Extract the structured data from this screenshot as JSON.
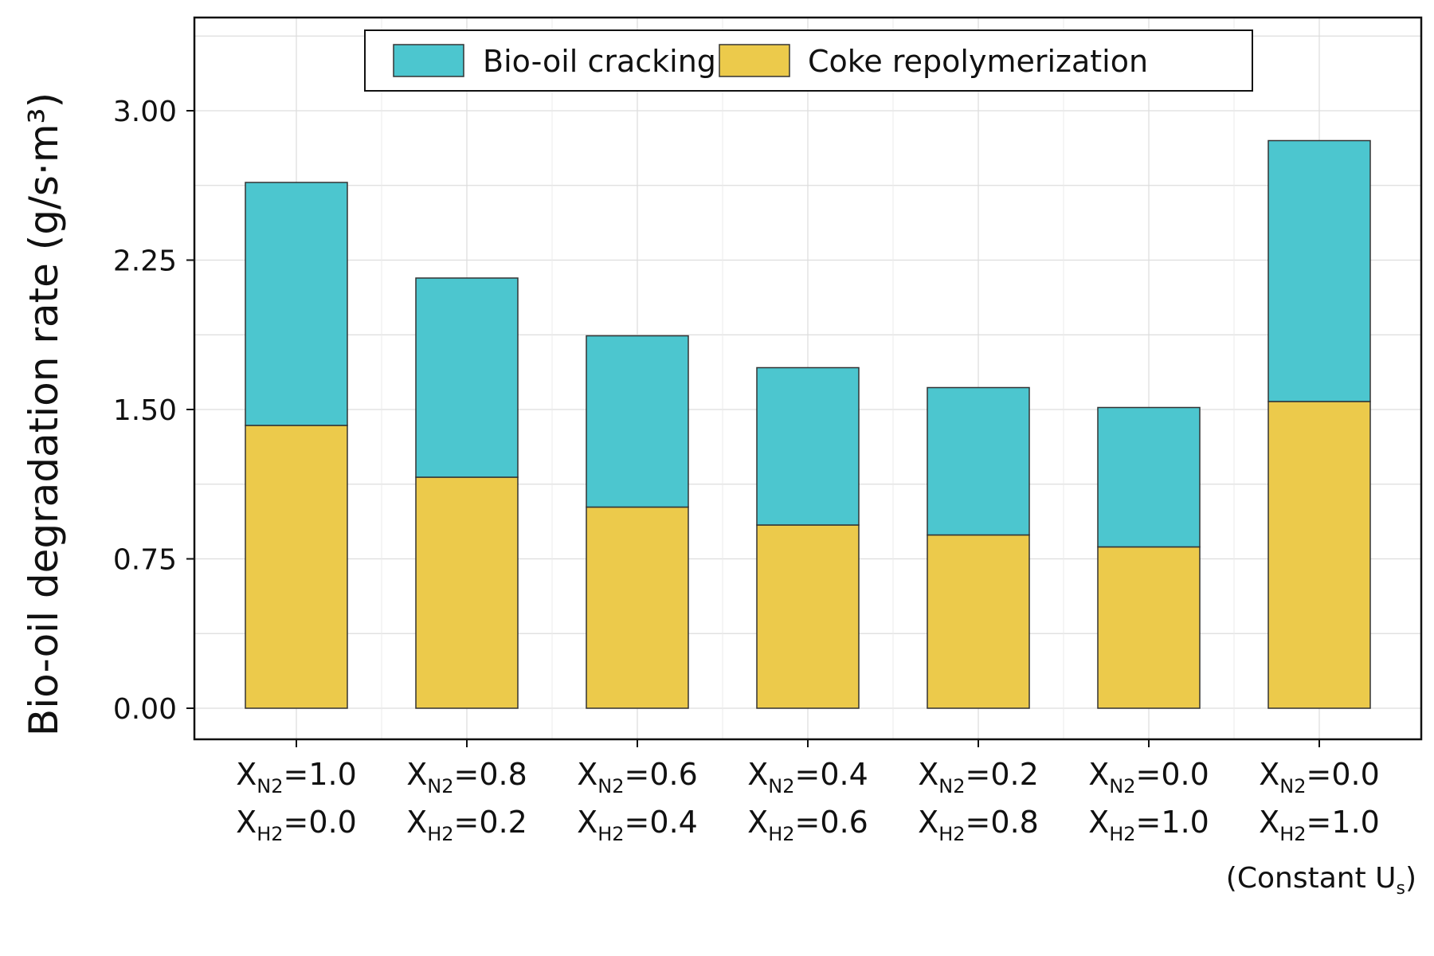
{
  "chart_data": {
    "type": "bar",
    "stacked": true,
    "ylabel": "Bio-oil degradation rate (g/s·m³)",
    "ylim": [
      0,
      3.45
    ],
    "yticks": [
      "0.00",
      "0.75",
      "1.50",
      "2.25",
      "3.00"
    ],
    "grid": true,
    "legend_position": "top",
    "categories": [
      {
        "n2": "X",
        "n2_sub": "N2",
        "n2_val": "=1.0",
        "h2": "X",
        "h2_sub": "H2",
        "h2_val": "=0.0"
      },
      {
        "n2": "X",
        "n2_sub": "N2",
        "n2_val": "=0.8",
        "h2": "X",
        "h2_sub": "H2",
        "h2_val": "=0.2"
      },
      {
        "n2": "X",
        "n2_sub": "N2",
        "n2_val": "=0.6",
        "h2": "X",
        "h2_sub": "H2",
        "h2_val": "=0.4"
      },
      {
        "n2": "X",
        "n2_sub": "N2",
        "n2_val": "=0.4",
        "h2": "X",
        "h2_sub": "H2",
        "h2_val": "=0.6"
      },
      {
        "n2": "X",
        "n2_sub": "N2",
        "n2_val": "=0.2",
        "h2": "X",
        "h2_sub": "H2",
        "h2_val": "=0.8"
      },
      {
        "n2": "X",
        "n2_sub": "N2",
        "n2_val": "=0.0",
        "h2": "X",
        "h2_sub": "H2",
        "h2_val": "=1.0"
      },
      {
        "n2": "X",
        "n2_sub": "N2",
        "n2_val": "=0.0",
        "h2": "X",
        "h2_sub": "H2",
        "h2_val": "=1.0"
      }
    ],
    "series": [
      {
        "name": "Coke repolymerization",
        "color": "#ecca4b",
        "values": [
          1.42,
          1.16,
          1.01,
          0.92,
          0.87,
          0.81,
          1.54
        ]
      },
      {
        "name": "Bio-oil cracking",
        "color": "#4cc6cf",
        "values": [
          1.22,
          1.0,
          0.86,
          0.79,
          0.74,
          0.7,
          1.31
        ]
      }
    ],
    "legend_order": [
      "Bio-oil cracking",
      "Coke repolymerization"
    ],
    "note": {
      "text": "(Constant U",
      "sub": "s",
      "close": ")"
    }
  }
}
